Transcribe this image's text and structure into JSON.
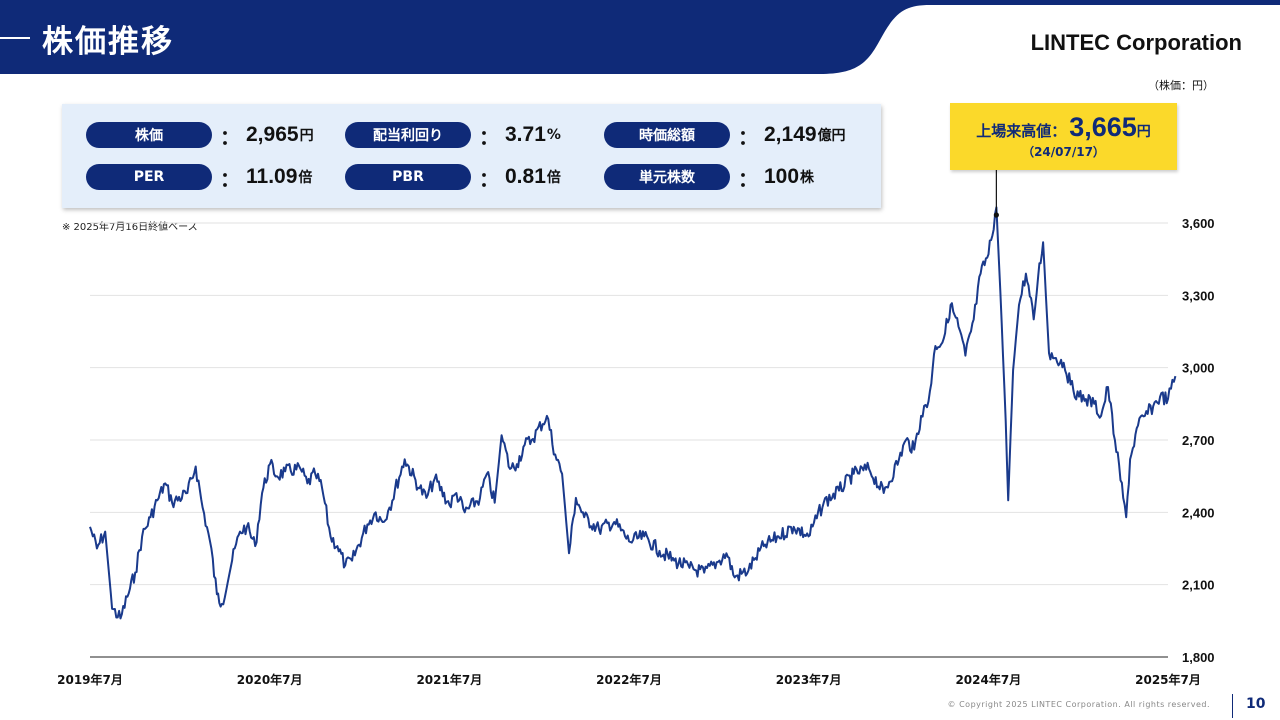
{
  "header": {
    "title": "株価推移",
    "company": "LINTEC Corporation",
    "unit_label": "（株価：円）",
    "colors": {
      "navy": "#0f2a78",
      "panel": "#e4eefa",
      "highlight": "#fbd92a"
    }
  },
  "kpis": [
    {
      "label": "株価",
      "value": "2,965",
      "unit": "円"
    },
    {
      "label": "配当利回り",
      "value": "3.71",
      "unit": "%"
    },
    {
      "label": "時価総額",
      "value": "2,149",
      "unit": "億円"
    },
    {
      "label": "PER",
      "value": "11.09",
      "unit": "倍"
    },
    {
      "label": "PBR",
      "value": "0.81",
      "unit": "倍"
    },
    {
      "label": "単元株数",
      "value": "100",
      "unit": "株"
    }
  ],
  "note": "※ 2025年7月16日終値ベース",
  "callout": {
    "label": "上場来高値：",
    "value": "3,665",
    "unit": "円",
    "date": "（24/07/17）"
  },
  "chart_data": {
    "type": "line",
    "title": "",
    "xlabel": "",
    "ylabel": "",
    "ylim": [
      1800,
      3600
    ],
    "yticks": [
      1800,
      2100,
      2400,
      2700,
      3000,
      3300,
      3600
    ],
    "ytick_labels": [
      "1,800",
      "2,100",
      "2,400",
      "2,700",
      "3,000",
      "3,300",
      "3,600"
    ],
    "x_range": [
      "2019-07",
      "2025-07"
    ],
    "xtick_labels": [
      "2019年7月",
      "2020年7月",
      "2021年7月",
      "2022年7月",
      "2023年7月",
      "2024年7月",
      "2025年7月"
    ],
    "grid": true,
    "line_color": "#1a3a8c",
    "series": [
      {
        "x": [
          "2019-07-01",
          "2019-07-15",
          "2019-08-01",
          "2019-08-15",
          "2019-09-01",
          "2019-09-15",
          "2019-10-01",
          "2019-10-15",
          "2019-11-01",
          "2019-11-15",
          "2019-12-01",
          "2019-12-15",
          "2020-01-15",
          "2020-02-01",
          "2020-02-15",
          "2020-03-01",
          "2020-03-15",
          "2020-03-25",
          "2020-04-15",
          "2020-05-01",
          "2020-05-15",
          "2020-06-01",
          "2020-06-15",
          "2020-07-01",
          "2020-07-15",
          "2020-08-01",
          "2020-09-01",
          "2020-09-15",
          "2020-10-01",
          "2020-10-15",
          "2020-11-01",
          "2020-11-15",
          "2020-12-01",
          "2020-12-15",
          "2021-01-15",
          "2021-02-01",
          "2021-02-15",
          "2021-03-01",
          "2021-04-01",
          "2021-05-01",
          "2021-05-15",
          "2021-06-01",
          "2021-07-01",
          "2021-07-15",
          "2021-08-01",
          "2021-09-01",
          "2021-09-15",
          "2021-10-01",
          "2021-10-15",
          "2021-11-01",
          "2021-11-15",
          "2021-12-01",
          "2021-12-15",
          "2022-01-15",
          "2022-02-01",
          "2022-02-15",
          "2022-03-01",
          "2022-03-15",
          "2022-04-01",
          "2022-05-01",
          "2022-06-01",
          "2022-07-01",
          "2022-08-01",
          "2022-09-01",
          "2022-10-01",
          "2022-11-01",
          "2022-12-01",
          "2023-01-01",
          "2023-01-15",
          "2023-02-01",
          "2023-03-01",
          "2023-03-15",
          "2023-04-01",
          "2023-05-01",
          "2023-06-01",
          "2023-07-01",
          "2023-08-01",
          "2023-09-01",
          "2023-10-01",
          "2023-11-01",
          "2023-12-01",
          "2024-01-01",
          "2024-01-15",
          "2024-02-01",
          "2024-02-15",
          "2024-03-01",
          "2024-03-15",
          "2024-04-01",
          "2024-04-15",
          "2024-05-01",
          "2024-05-15",
          "2024-06-01",
          "2024-06-15",
          "2024-07-01",
          "2024-07-17",
          "2024-07-25",
          "2024-08-05",
          "2024-08-10",
          "2024-08-20",
          "2024-09-01",
          "2024-09-15",
          "2024-10-01",
          "2024-10-10",
          "2024-10-20",
          "2024-11-01",
          "2024-11-15",
          "2024-12-01",
          "2024-12-15",
          "2025-01-01",
          "2025-01-15",
          "2025-02-01",
          "2025-02-15",
          "2025-03-01",
          "2025-03-15",
          "2025-04-01",
          "2025-04-07",
          "2025-04-15",
          "2025-05-01",
          "2025-05-15",
          "2025-06-01",
          "2025-06-15",
          "2025-07-01",
          "2025-07-16"
        ],
        "values": [
          2340,
          2250,
          2320,
          2000,
          1960,
          2050,
          2150,
          2300,
          2380,
          2450,
          2520,
          2440,
          2480,
          2590,
          2420,
          2280,
          2060,
          2020,
          2200,
          2320,
          2340,
          2260,
          2480,
          2600,
          2550,
          2570,
          2580,
          2520,
          2560,
          2500,
          2300,
          2260,
          2180,
          2200,
          2350,
          2400,
          2360,
          2420,
          2620,
          2500,
          2460,
          2540,
          2430,
          2480,
          2400,
          2460,
          2560,
          2440,
          2720,
          2580,
          2600,
          2680,
          2700,
          2800,
          2640,
          2560,
          2230,
          2460,
          2380,
          2330,
          2360,
          2280,
          2300,
          2240,
          2200,
          2170,
          2150,
          2200,
          2230,
          2130,
          2160,
          2210,
          2260,
          2300,
          2340,
          2300,
          2440,
          2490,
          2560,
          2580,
          2480,
          2620,
          2700,
          2660,
          2800,
          2860,
          3090,
          3120,
          3260,
          3170,
          3050,
          3200,
          3390,
          3470,
          3665,
          3320,
          2780,
          2450,
          2990,
          3260,
          3390,
          3200,
          3380,
          3520,
          3060,
          3040,
          3020,
          2930,
          2880,
          2870,
          2850,
          2800,
          2920,
          2700,
          2460,
          2380,
          2620,
          2760,
          2800,
          2840,
          2880,
          2870,
          2965
        ]
      }
    ]
  },
  "footer": {
    "copyright": "© Copyright 2025 LINTEC Corporation. All rights reserved.",
    "page": "10"
  }
}
